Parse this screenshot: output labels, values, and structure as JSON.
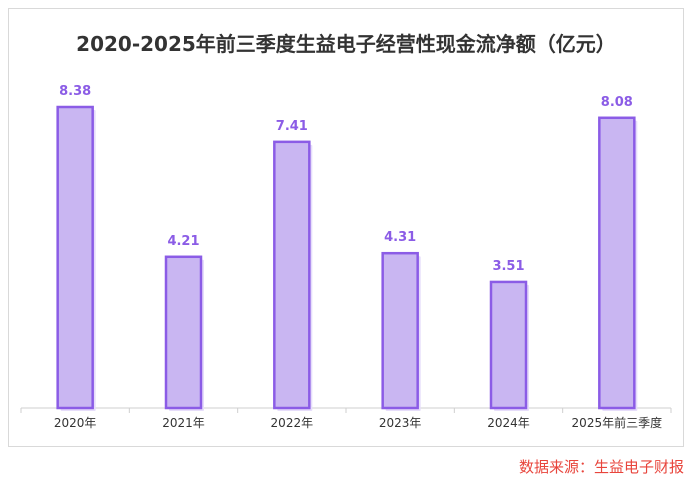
{
  "chart_data": {
    "type": "bar",
    "title": "2020-2025年前三季度生益电子经营性现金流净额（亿元）",
    "categories": [
      "2020年",
      "2021年",
      "2022年",
      "2023年",
      "2024年",
      "2025年前三季度"
    ],
    "values": [
      8.38,
      4.21,
      7.41,
      4.31,
      3.51,
      8.08
    ],
    "ylim": [
      0,
      8.38
    ],
    "grid": false,
    "legend": "none",
    "colors": {
      "bar_fill": "#c9b6f2",
      "bar_stroke": "#8b5ce6",
      "label": "#8b5ce6",
      "axis": "#cfcfcf"
    }
  },
  "source": "数据来源：生益电子财报"
}
